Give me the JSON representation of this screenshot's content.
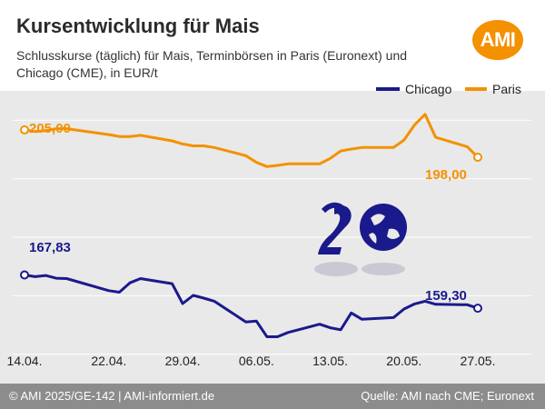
{
  "header": {
    "title": "Kursentwicklung für Mais",
    "subtitle": "Schlusskurse (täglich) für Mais, Terminbörsen in Paris (Euronext) und Chicago (CME), in EUR/t",
    "logo_text": "AMI"
  },
  "footer": {
    "copyright": "© AMI 2025/GE-142 | AMI-informiert.de",
    "source": "Quelle: AMI nach CME; Euronext"
  },
  "colors": {
    "chicago": "#1a1a8c",
    "paris": "#f39100",
    "plot_background": "#e9e9e9",
    "footer_background": "#8c8c8c",
    "logo": "#f39100"
  },
  "chart_data": {
    "type": "line",
    "title": "Kursentwicklung für Mais",
    "subtitle": "Schlusskurse (täglich) für Mais, Terminbörsen in Paris (Euronext) und Chicago (CME), in EUR/t",
    "x_tick_labels": [
      "14.04.",
      "22.04.",
      "29.04.",
      "06.05.",
      "13.05.",
      "20.05.",
      "27.05."
    ],
    "x_tick_dates": [
      "2025-04-14",
      "2025-04-22",
      "2025-04-29",
      "2025-05-06",
      "2025-05-13",
      "2025-05-20",
      "2025-05-27"
    ],
    "dates": [
      "2025-04-14",
      "2025-04-15",
      "2025-04-16",
      "2025-04-17",
      "2025-04-18",
      "2025-04-22",
      "2025-04-23",
      "2025-04-24",
      "2025-04-25",
      "2025-04-28",
      "2025-04-29",
      "2025-04-30",
      "2025-05-01",
      "2025-05-02",
      "2025-05-05",
      "2025-05-06",
      "2025-05-07",
      "2025-05-08",
      "2025-05-09",
      "2025-05-12",
      "2025-05-13",
      "2025-05-14",
      "2025-05-15",
      "2025-05-16",
      "2025-05-19",
      "2025-05-20",
      "2025-05-21",
      "2025-05-22",
      "2025-05-23",
      "2025-05-26",
      "2025-05-27"
    ],
    "ylim": [
      140,
      215
    ],
    "grid": true,
    "legend_position": "top-right",
    "series": [
      {
        "name": "Chicago",
        "color": "#1a1a8c",
        "values": [
          167.83,
          167.4,
          167.7,
          167.0,
          166.9,
          163.8,
          163.4,
          165.8,
          166.9,
          165.6,
          160.5,
          162.6,
          161.9,
          161.1,
          155.8,
          156.0,
          152.0,
          152.0,
          153.1,
          155.2,
          154.3,
          153.8,
          158.1,
          156.5,
          156.9,
          159.1,
          160.4,
          161.1,
          160.3,
          160.2,
          159.3
        ],
        "first_label": "167,83",
        "last_label": "159,30"
      },
      {
        "name": "Paris",
        "color": "#f39100",
        "values": [
          205.0,
          204.6,
          204.8,
          205.3,
          205.3,
          203.8,
          203.3,
          203.3,
          203.6,
          202.2,
          201.4,
          200.9,
          200.9,
          200.5,
          198.4,
          196.7,
          195.6,
          195.9,
          196.3,
          196.3,
          197.7,
          199.6,
          200.1,
          200.5,
          200.5,
          202.4,
          206.3,
          209.0,
          203.1,
          200.7,
          198.0
        ],
        "first_label": "205,00",
        "last_label": "198,00"
      }
    ]
  }
}
